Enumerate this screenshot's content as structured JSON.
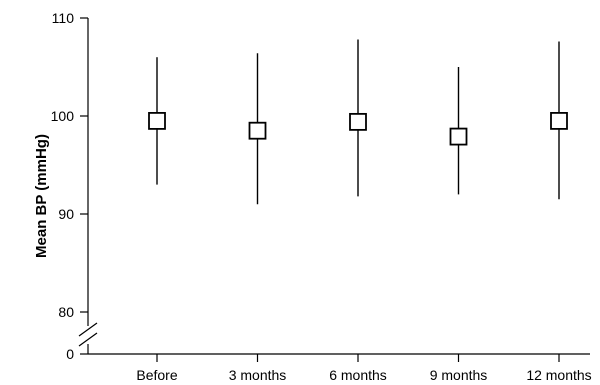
{
  "chart_data": {
    "type": "scatter",
    "title": "",
    "xlabel": "",
    "ylabel": "Mean BP (mmHg)",
    "categories": [
      "Before",
      "3 months",
      "6 months",
      "9 months",
      "12 months"
    ],
    "series": [
      {
        "mean": [
          99.5,
          98.5,
          99.4,
          97.9,
          99.5
        ],
        "upper": [
          106.0,
          106.4,
          107.8,
          105.0,
          107.6
        ],
        "lower": [
          93.0,
          91.0,
          91.8,
          92.0,
          91.5
        ]
      }
    ],
    "ylim": [
      75,
      110
    ],
    "yticks": [
      80,
      90,
      100,
      110
    ],
    "y_break": true,
    "y_zero_label": "0",
    "grid": false,
    "marker": "open-square"
  }
}
